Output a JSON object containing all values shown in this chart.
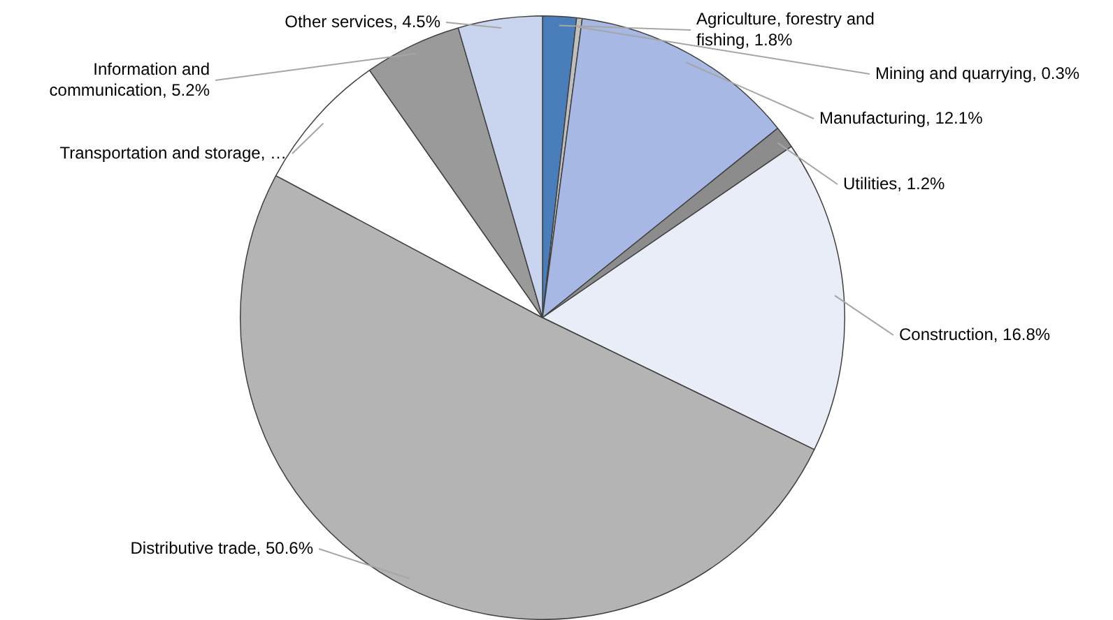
{
  "chart_data": {
    "type": "pie",
    "categories": [
      "Agriculture, forestry and fishing",
      "Mining and quarrying",
      "Manufacturing",
      "Utilities",
      "Construction",
      "Distributive trade",
      "Transportation and storage",
      "Information and communication",
      "Other services"
    ],
    "values": [
      1.8,
      0.3,
      12.1,
      1.2,
      16.8,
      50.6,
      7.5,
      5.2,
      4.5
    ],
    "value_labels": [
      "1.8%",
      "0.3%",
      "12.1%",
      "1.2%",
      "16.8%",
      "50.6%",
      "…",
      "5.2%",
      "4.5%"
    ],
    "colors": [
      "#4a7ebb",
      "#bfbfbf",
      "#a6b8e3",
      "#8c8c8c",
      "#e9edf7",
      "#b4b4b4",
      "#ffffff",
      "#9a9a9a",
      "#c9d5ee"
    ],
    "legend": false
  }
}
